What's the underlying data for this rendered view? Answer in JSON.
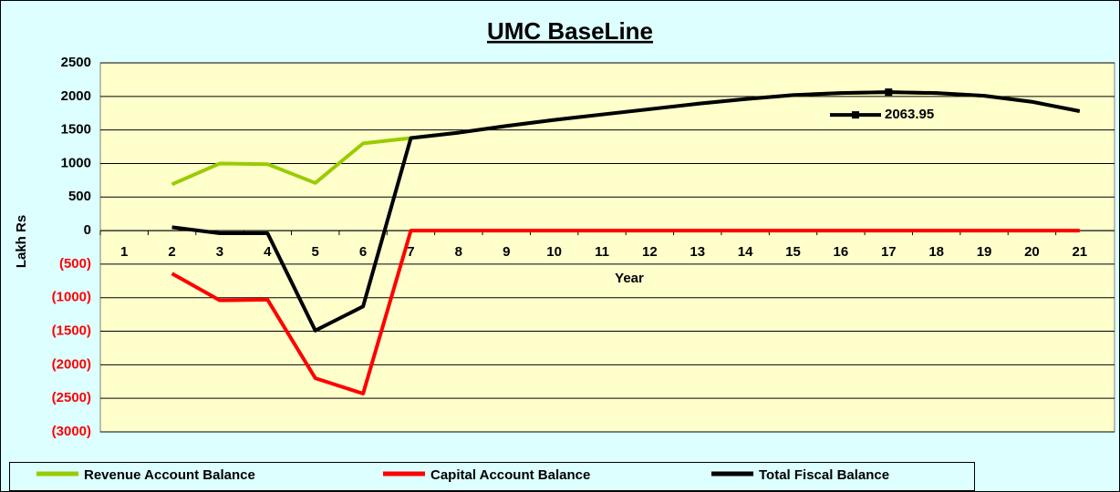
{
  "chart_data": {
    "type": "line",
    "title": "UMC BaseLine",
    "x_label": "Year",
    "y_label": "Lakh Rs",
    "categories": [
      "1",
      "2",
      "3",
      "4",
      "5",
      "6",
      "7",
      "8",
      "9",
      "10",
      "11",
      "12",
      "13",
      "14",
      "15",
      "16",
      "17",
      "18",
      "19",
      "20",
      "21"
    ],
    "series": [
      {
        "name": "Revenue Account Balance",
        "color": "#99cc00",
        "values": [
          null,
          690,
          1000,
          990,
          710,
          1300,
          1380,
          1460,
          1560,
          1650,
          1730,
          1810,
          1890,
          1960,
          2020,
          2050,
          2063.95,
          2050,
          2010,
          1920,
          1780
        ]
      },
      {
        "name": "Capital Account Balance",
        "color": "#ff0000",
        "values": [
          null,
          -640,
          -1040,
          -1030,
          -2200,
          -2430,
          0,
          0,
          0,
          0,
          0,
          0,
          0,
          0,
          0,
          0,
          0,
          0,
          0,
          0,
          0
        ]
      },
      {
        "name": "Total Fiscal Balance",
        "color": "#000000",
        "values": [
          null,
          50,
          -40,
          -40,
          -1490,
          -1130,
          1380,
          1460,
          1560,
          1650,
          1730,
          1810,
          1890,
          1960,
          2020,
          2050,
          2063.95,
          2050,
          2010,
          1920,
          1780
        ]
      }
    ],
    "ylim": [
      -3000,
      2500
    ],
    "yticks": [
      {
        "value": -3000,
        "label": "(3000)"
      },
      {
        "value": -2500,
        "label": "(2500)"
      },
      {
        "value": -2000,
        "label": "(2000)"
      },
      {
        "value": -1500,
        "label": "(1500)"
      },
      {
        "value": -1000,
        "label": "(1000)"
      },
      {
        "value": -500,
        "label": "(500)"
      },
      0,
      500,
      1000,
      1500,
      2000,
      2500
    ],
    "negative_tick_color": "#ff0000",
    "grid": true,
    "legend": "bottom"
  }
}
